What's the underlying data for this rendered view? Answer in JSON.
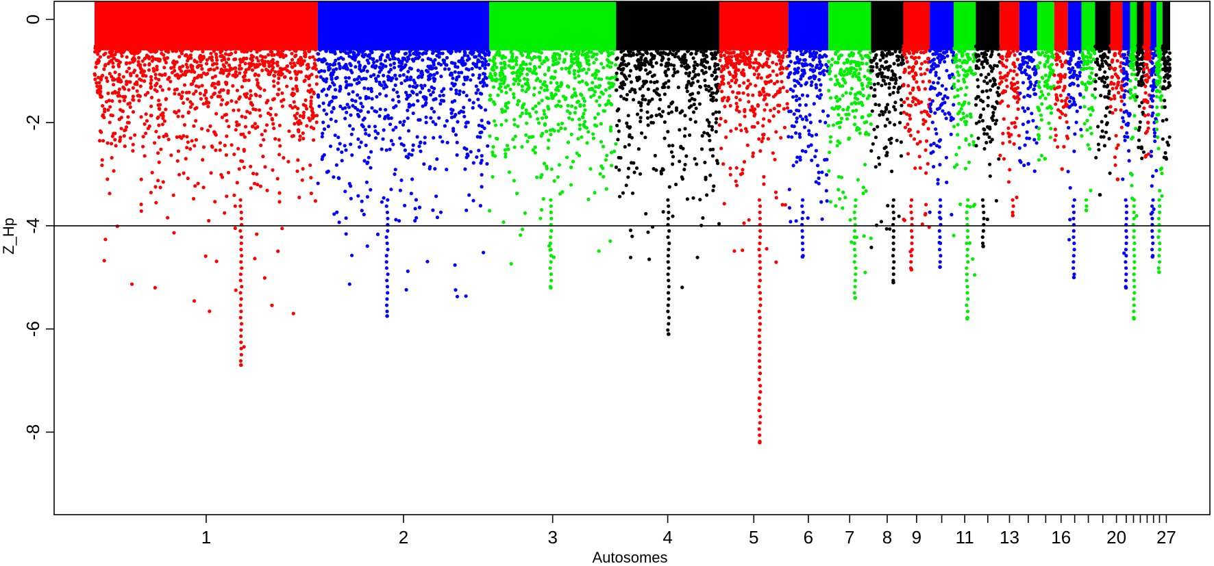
{
  "chart_data": {
    "type": "scatter",
    "title": "",
    "xlabel": "Autosomes",
    "ylabel": "Z_Hp",
    "ylim": [
      -9.6,
      0.35
    ],
    "yticks": [
      0,
      -2,
      -4,
      -6,
      -8
    ],
    "threshold": -4,
    "grid": false,
    "legend": "none",
    "colors": [
      "#ff0000",
      "#0000ff",
      "#00ee00",
      "#000000"
    ],
    "labeled_ticks": [
      "1",
      "2",
      "3",
      "4",
      "5",
      "6",
      "7",
      "8",
      "9",
      "11",
      "13",
      "16",
      "20",
      "27"
    ],
    "chromosomes": [
      {
        "chr": 1,
        "start": 0.0,
        "end": 26.2,
        "color": "#ff0000",
        "min_z": -6.7
      },
      {
        "chr": 2,
        "start": 26.2,
        "end": 46.3,
        "color": "#0000ff",
        "min_z": -5.75
      },
      {
        "chr": 3,
        "start": 46.3,
        "end": 61.2,
        "color": "#00ee00",
        "min_z": -5.2
      },
      {
        "chr": 4,
        "start": 61.2,
        "end": 73.3,
        "color": "#000000",
        "min_z": -6.1
      },
      {
        "chr": 5,
        "start": 73.3,
        "end": 81.4,
        "color": "#ff0000",
        "min_z": -8.2
      },
      {
        "chr": 6,
        "start": 81.4,
        "end": 86.1,
        "color": "#0000ff",
        "min_z": -4.6
      },
      {
        "chr": 7,
        "start": 86.1,
        "end": 91.1,
        "color": "#00ee00",
        "min_z": -5.4
      },
      {
        "chr": 8,
        "start": 91.1,
        "end": 94.9,
        "color": "#000000",
        "min_z": -5.1
      },
      {
        "chr": 9,
        "start": 94.9,
        "end": 98.0,
        "color": "#ff0000",
        "min_z": -4.85
      },
      {
        "chr": 10,
        "start": 98.0,
        "end": 100.8,
        "color": "#0000ff",
        "min_z": -4.8
      },
      {
        "chr": 11,
        "start": 100.8,
        "end": 103.4,
        "color": "#00ee00",
        "min_z": -5.8
      },
      {
        "chr": 12,
        "start": 103.4,
        "end": 106.2,
        "color": "#000000",
        "min_z": -4.4
      },
      {
        "chr": 13,
        "start": 106.2,
        "end": 108.5,
        "color": "#ff0000",
        "min_z": -3.8
      },
      {
        "chr": 14,
        "start": 108.5,
        "end": 110.6,
        "color": "#0000ff",
        "min_z": -2.8
      },
      {
        "chr": 15,
        "start": 110.6,
        "end": 112.6,
        "color": "#00ee00",
        "min_z": -2.7
      },
      {
        "chr": 16,
        "start": 112.6,
        "end": 114.2,
        "color": "#ff0000",
        "min_z": -2.9
      },
      {
        "chr": 17,
        "start": 114.2,
        "end": 115.8,
        "color": "#0000ff",
        "min_z": -5.0
      },
      {
        "chr": 18,
        "start": 115.8,
        "end": 117.4,
        "color": "#00ee00",
        "min_z": -3.7
      },
      {
        "chr": 19,
        "start": 117.4,
        "end": 119.2,
        "color": "#000000",
        "min_z": -3.4
      },
      {
        "chr": 20,
        "start": 119.2,
        "end": 120.6,
        "color": "#ff0000",
        "min_z": -3.1
      },
      {
        "chr": 21,
        "start": 120.6,
        "end": 121.5,
        "color": "#0000ff",
        "min_z": -5.2
      },
      {
        "chr": 22,
        "start": 121.5,
        "end": 122.3,
        "color": "#00ee00",
        "min_z": -5.8
      },
      {
        "chr": 23,
        "start": 122.3,
        "end": 123.1,
        "color": "#000000",
        "min_z": -2.5
      },
      {
        "chr": 24,
        "start": 123.1,
        "end": 123.9,
        "color": "#ff0000",
        "min_z": -2.0
      },
      {
        "chr": 25,
        "start": 123.9,
        "end": 124.6,
        "color": "#0000ff",
        "min_z": -4.6
      },
      {
        "chr": 26,
        "start": 124.6,
        "end": 125.3,
        "color": "#00ee00",
        "min_z": -4.9
      },
      {
        "chr": 27,
        "start": 125.3,
        "end": 126.2,
        "color": "#000000",
        "min_z": -1.7
      }
    ]
  }
}
